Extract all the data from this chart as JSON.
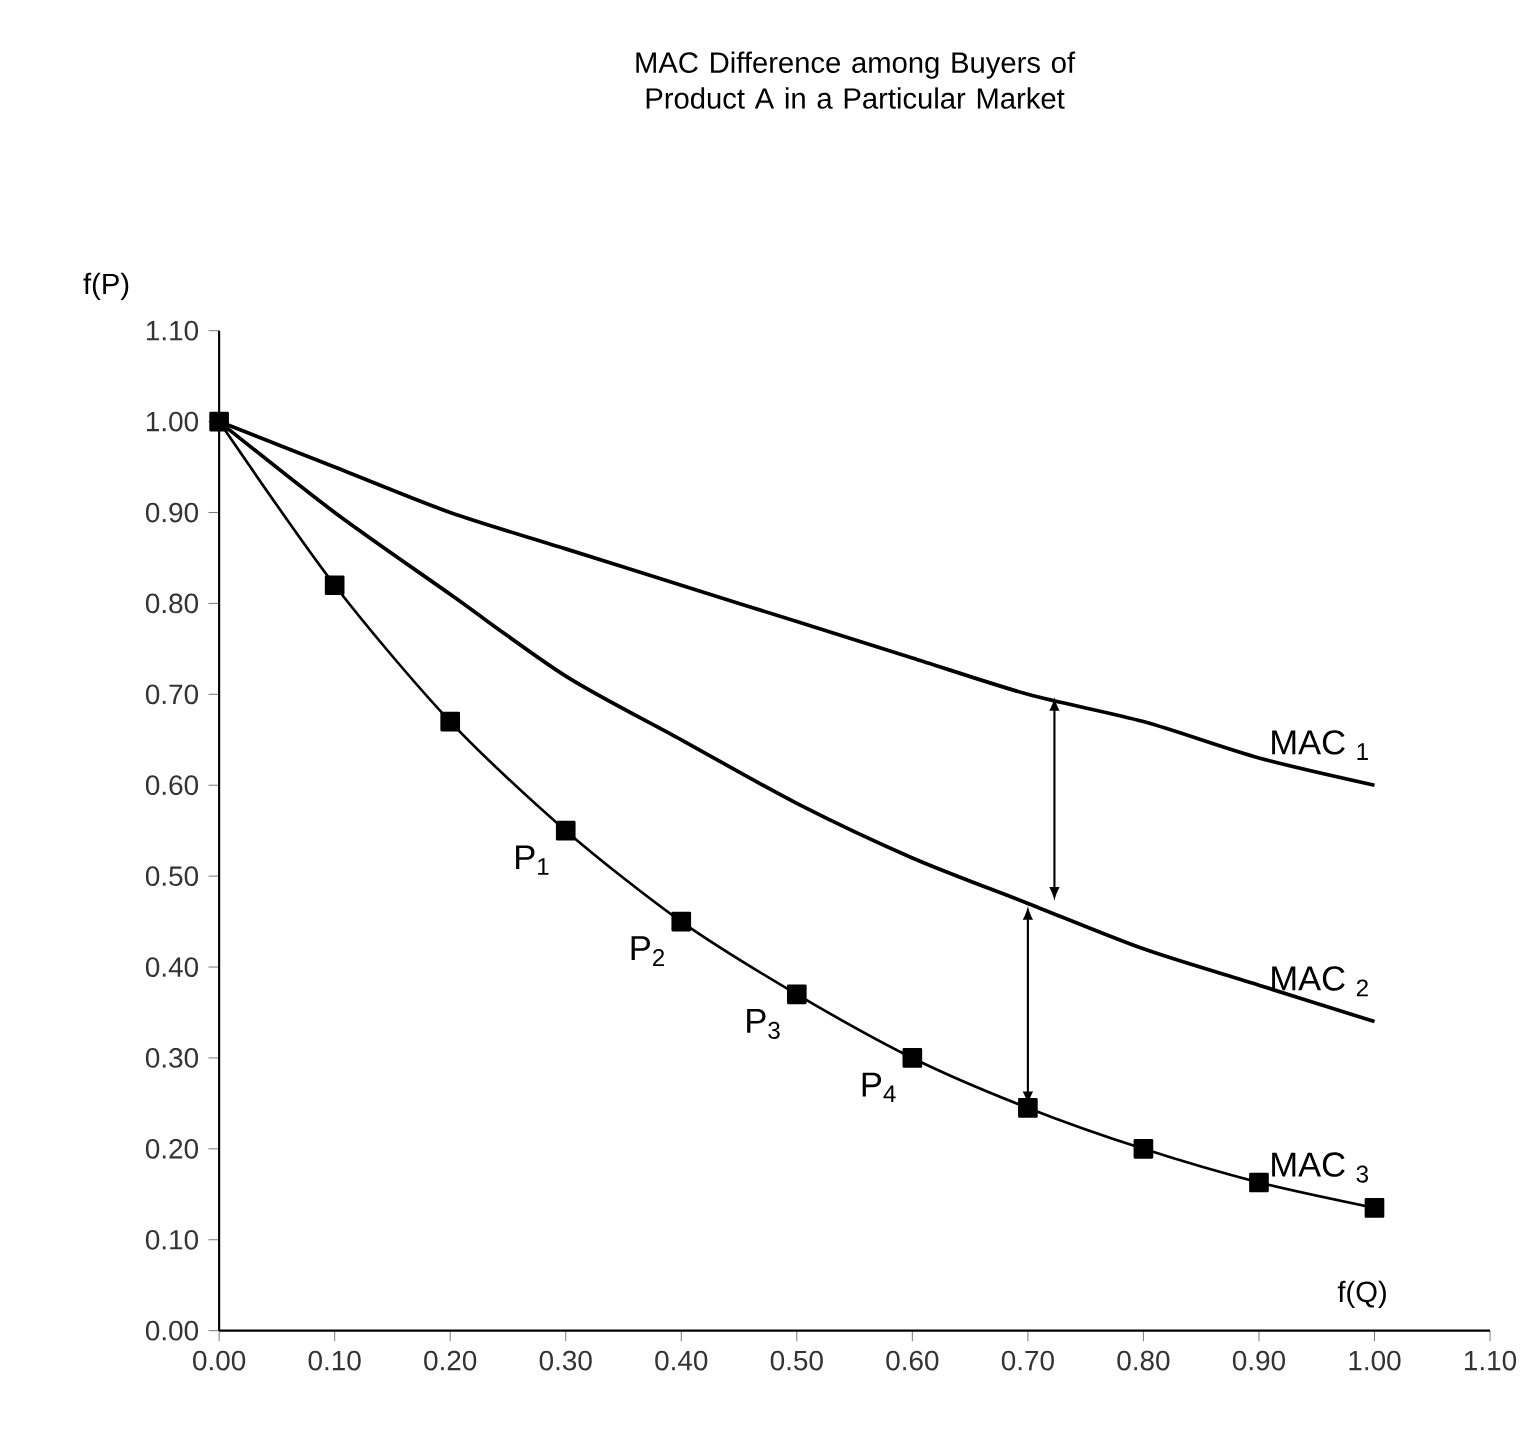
{
  "chart_data": {
    "type": "line",
    "title": "MAC Difference among Buyers of Product A in a Particular Market",
    "xlabel": "f(Q)",
    "ylabel": "f(P)",
    "x": [
      0,
      0.1,
      0.2,
      0.3,
      0.4,
      0.5,
      0.6,
      0.7,
      0.8,
      0.9,
      1.0
    ],
    "series": [
      {
        "name": "MAC $_{1}$",
        "color": "#000000",
        "marker": "none",
        "values": [
          1.0,
          0.95,
          0.9,
          0.86,
          0.82,
          0.78,
          0.74,
          0.7,
          0.67,
          0.63,
          0.6
        ]
      },
      {
        "name": "MAC $_{2}$",
        "color": "#000000",
        "marker": "none",
        "values": [
          1.0,
          0.9,
          0.81,
          0.72,
          0.65,
          0.58,
          0.52,
          0.47,
          0.42,
          0.38,
          0.34
        ]
      },
      {
        "name": "MAC $_{3}$",
        "color": "#000000",
        "marker": "square",
        "values": [
          1.0,
          0.82,
          0.67,
          0.55,
          0.45,
          0.37,
          0.3,
          0.245,
          0.2,
          0.163,
          0.135
        ]
      }
    ],
    "annotations": [
      {
        "text": "P$_{1}$",
        "x": 0.3,
        "y": 0.55
      },
      {
        "text": "P$_{2}$",
        "x": 0.4,
        "y": 0.45
      },
      {
        "text": "P$_{3}$",
        "x": 0.5,
        "y": 0.37
      },
      {
        "text": "P$_{4}$",
        "x": 0.6,
        "y": 0.3
      }
    ],
    "xlim": [
      0,
      1.1
    ],
    "ylim": [
      0,
      1.1
    ],
    "xticks": [
      {
        "value": 0,
        "label": "0.00"
      },
      {
        "value": 0.1,
        "label": "0.10"
      },
      {
        "value": 0.2,
        "label": "0.20"
      },
      {
        "value": 0.3,
        "label": "0.30"
      },
      {
        "value": 0.4,
        "label": "0.40"
      },
      {
        "value": 0.5,
        "label": "0.50"
      },
      {
        "value": 0.6,
        "label": "0.60"
      },
      {
        "value": 0.7,
        "label": "0.70"
      },
      {
        "value": 0.8,
        "label": "0.80"
      },
      {
        "value": 0.9,
        "label": "0.90"
      },
      {
        "value": 1.0,
        "label": "1.00"
      },
      {
        "value": 1.1,
        "label": "1.10"
      }
    ],
    "yticks": [
      {
        "value": 0,
        "label": "0.00"
      },
      {
        "value": 0.1,
        "label": "0.10"
      },
      {
        "value": 0.2,
        "label": "0.20"
      },
      {
        "value": 0.3,
        "label": "0.30"
      },
      {
        "value": 0.4,
        "label": "0.40"
      },
      {
        "value": 0.5,
        "label": "0.50"
      },
      {
        "value": 0.6,
        "label": "0.60"
      },
      {
        "value": 0.7,
        "label": "0.70"
      },
      {
        "value": 0.8,
        "label": "0.80"
      },
      {
        "value": 0.9,
        "label": "0.90"
      },
      {
        "value": 1.0,
        "label": "1.00"
      },
      {
        "value": 1.1,
        "label": "1.10"
      }
    ],
    "grid": false,
    "line_style": "solid"
  }
}
